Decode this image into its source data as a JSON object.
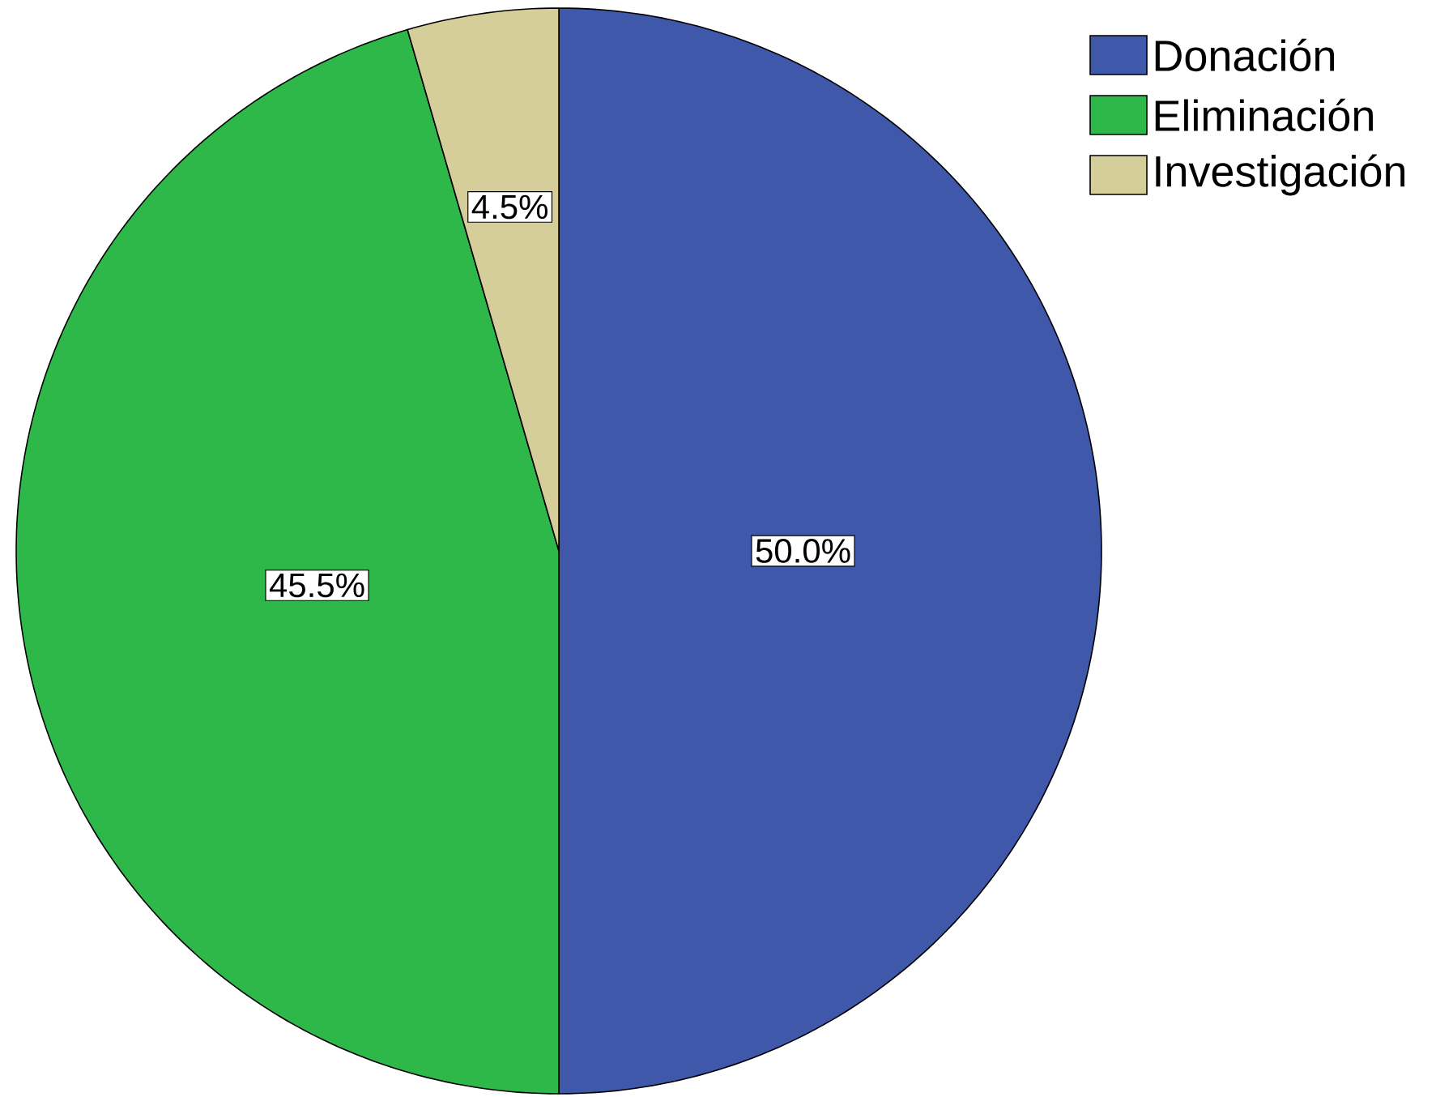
{
  "chart_data": {
    "type": "pie",
    "categories": [
      "Donación",
      "Eliminación",
      "Investigación"
    ],
    "values": [
      50.0,
      45.5,
      4.5
    ],
    "value_labels": [
      "50.0%",
      "45.5%",
      "4.5%"
    ],
    "colors": [
      "#3f58a9",
      "#2eb84a",
      "#d5cd9a"
    ],
    "legend": "top right"
  }
}
